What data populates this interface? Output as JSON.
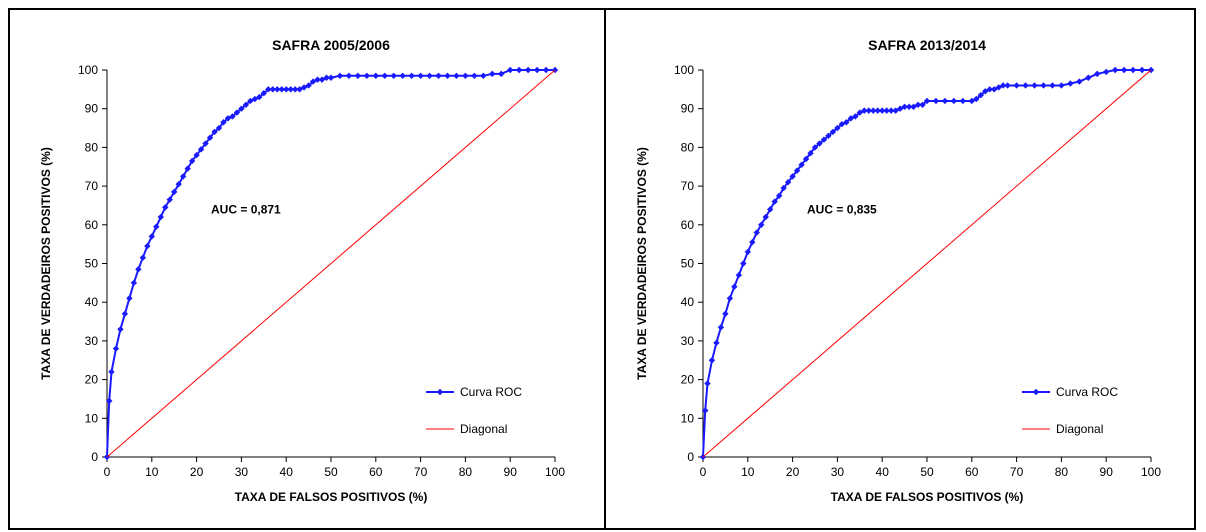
{
  "chart_data": [
    {
      "type": "line",
      "title": "SAFRA 2005/2006",
      "xlabel": "TAXA DE FALSOS POSITIVOS (%)",
      "ylabel": "TAXA DE VERDADEIROS POSITIVOS (%)",
      "xlim": [
        0,
        100
      ],
      "ylim": [
        0,
        100
      ],
      "xticks": [
        "0",
        "10",
        "20",
        "30",
        "40",
        "50",
        "60",
        "70",
        "80",
        "90",
        "100"
      ],
      "yticks": [
        "0",
        "10",
        "20",
        "30",
        "40",
        "50",
        "60",
        "70",
        "80",
        "90",
        "100"
      ],
      "annotation": "AUC = 0,871",
      "legend_position": "bottom-right",
      "grid": false,
      "series": [
        {
          "name": "Curva ROC",
          "color": "#1a1aff",
          "marker": "diamond",
          "x": [
            0,
            0.5,
            1,
            2,
            3,
            4,
            5,
            6,
            7,
            8,
            9,
            10,
            11,
            12,
            13,
            14,
            15,
            16,
            17,
            18,
            19,
            20,
            21,
            22,
            23,
            24,
            25,
            26,
            27,
            28,
            29,
            30,
            31,
            32,
            33,
            34,
            35,
            36,
            37,
            38,
            39,
            40,
            41,
            42,
            43,
            44,
            45,
            46,
            47,
            48,
            49,
            50,
            52,
            54,
            56,
            58,
            60,
            62,
            64,
            66,
            68,
            70,
            72,
            74,
            76,
            78,
            80,
            82,
            84,
            86,
            88,
            90,
            92,
            94,
            96,
            98,
            100
          ],
          "y": [
            0,
            14.5,
            22,
            28,
            33,
            37,
            41,
            45,
            48.5,
            51.5,
            54.5,
            57,
            59.5,
            62,
            64.5,
            66.5,
            68.5,
            70.5,
            72.5,
            74.5,
            76.5,
            78,
            79.5,
            81,
            82.5,
            84,
            85,
            86.5,
            87.5,
            88,
            89,
            90,
            91,
            92,
            92.5,
            93,
            94,
            95,
            95,
            95,
            95,
            95,
            95,
            95,
            95,
            95.5,
            96,
            97,
            97.5,
            97.5,
            98,
            98,
            98.5,
            98.5,
            98.5,
            98.5,
            98.5,
            98.5,
            98.5,
            98.5,
            98.5,
            98.5,
            98.5,
            98.5,
            98.5,
            98.5,
            98.5,
            98.5,
            98.5,
            99,
            99,
            100,
            100,
            100,
            100,
            100,
            100
          ]
        },
        {
          "name": "Diagonal",
          "color": "#ff0000",
          "x": [
            0,
            100
          ],
          "y": [
            0,
            100
          ]
        }
      ]
    },
    {
      "type": "line",
      "title": "SAFRA 2013/2014",
      "xlabel": "TAXA DE FALSOS POSITIVOS (%)",
      "ylabel": "TAXA DE VERDADEIROS POSITIVOS (%)",
      "xlim": [
        0,
        100
      ],
      "ylim": [
        0,
        100
      ],
      "xticks": [
        "0",
        "10",
        "20",
        "30",
        "40",
        "50",
        "60",
        "70",
        "80",
        "90",
        "100"
      ],
      "yticks": [
        "0",
        "10",
        "20",
        "30",
        "40",
        "50",
        "60",
        "70",
        "80",
        "90",
        "100"
      ],
      "annotation": "AUC = 0,835",
      "legend_position": "bottom-right",
      "grid": false,
      "series": [
        {
          "name": "Curva ROC",
          "color": "#1a1aff",
          "marker": "diamond",
          "x": [
            0,
            0.5,
            1,
            2,
            3,
            4,
            5,
            6,
            7,
            8,
            9,
            10,
            11,
            12,
            13,
            14,
            15,
            16,
            17,
            18,
            19,
            20,
            21,
            22,
            23,
            24,
            25,
            26,
            27,
            28,
            29,
            30,
            31,
            32,
            33,
            34,
            35,
            36,
            37,
            38,
            39,
            40,
            41,
            42,
            43,
            44,
            45,
            46,
            47,
            48,
            49,
            50,
            52,
            54,
            56,
            58,
            60,
            61,
            62,
            63,
            64,
            65,
            66,
            67,
            68,
            70,
            72,
            74,
            76,
            78,
            80,
            82,
            84,
            86,
            88,
            90,
            92,
            94,
            96,
            98,
            100
          ],
          "y": [
            0,
            12,
            19,
            25,
            29.5,
            33.5,
            37,
            41,
            44,
            47,
            50,
            53,
            55.5,
            58,
            60,
            62,
            64,
            66,
            67.5,
            69.5,
            71,
            72.5,
            74,
            75.5,
            77,
            78.5,
            80,
            81,
            82,
            83,
            84,
            85,
            86,
            86.5,
            87.5,
            88,
            89,
            89.5,
            89.5,
            89.5,
            89.5,
            89.5,
            89.5,
            89.5,
            89.5,
            90,
            90.5,
            90.5,
            90.5,
            91,
            91,
            92,
            92,
            92,
            92,
            92,
            92,
            92.5,
            93.5,
            94.5,
            95,
            95,
            95.5,
            96,
            96,
            96,
            96,
            96,
            96,
            96,
            96,
            96.5,
            97,
            98,
            99,
            99.5,
            100,
            100,
            100,
            100,
            100
          ]
        },
        {
          "name": "Diagonal",
          "color": "#ff0000",
          "x": [
            0,
            100
          ],
          "y": [
            0,
            100
          ]
        }
      ]
    }
  ]
}
